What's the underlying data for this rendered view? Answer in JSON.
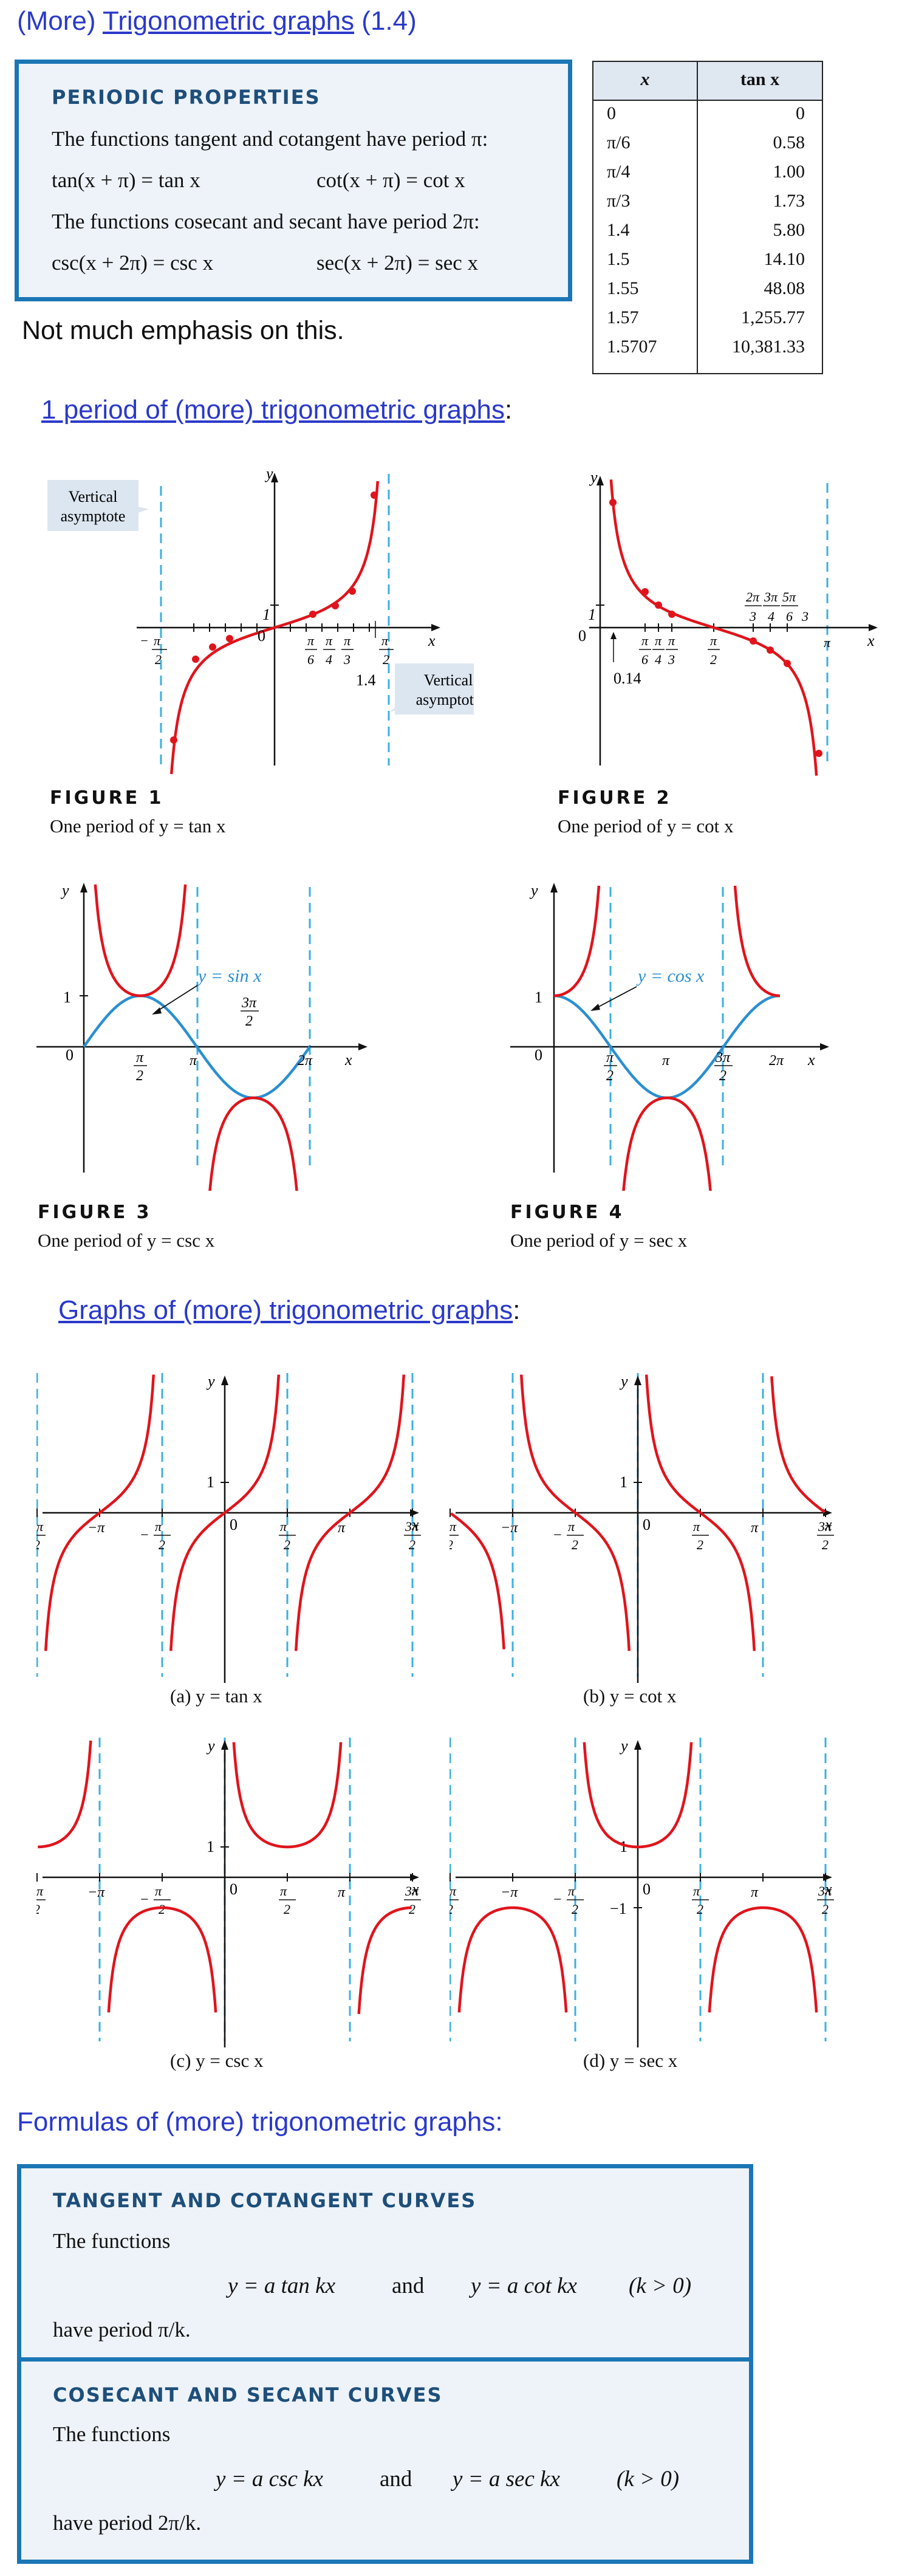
{
  "page": {
    "title_prefix": "(More) ",
    "title_link": "Trigonometric graphs",
    "title_suffix": " (1.4)"
  },
  "periodic": {
    "title": "PERIODIC PROPERTIES",
    "line1": "The functions tangent and cotangent have period π:",
    "f1a": "tan(x + π) = tan x",
    "f1b": "cot(x + π) = cot x",
    "line2": "The functions cosecant and secant have period 2π:",
    "f2a": "csc(x + 2π) = csc x",
    "f2b": "sec(x + 2π) = sec x"
  },
  "note": "Not much emphasis on this.",
  "table": {
    "headers": [
      "x",
      "tan x"
    ],
    "rows": [
      [
        "0",
        "0"
      ],
      [
        "π/6",
        "0.58"
      ],
      [
        "π/4",
        "1.00"
      ],
      [
        "π/3",
        "1.73"
      ],
      [
        "1.4",
        "5.80"
      ],
      [
        "1.5",
        "14.10"
      ],
      [
        "1.55",
        "48.08"
      ],
      [
        "1.57",
        "1,255.77"
      ],
      [
        "1.5707",
        "10,381.33"
      ]
    ]
  },
  "section1": {
    "link": "1 period of (more) trigonometric graphs",
    "suffix": ":"
  },
  "fig1": {
    "label": "FIGURE 1",
    "caption": "One period of y = tan x",
    "callout_top": [
      "Vertical",
      "asymptote"
    ],
    "callout_bottom": [
      "Vertical",
      "asymptote"
    ],
    "annot": "1.4",
    "ticks": [
      "π",
      "6",
      "π",
      "4",
      "π",
      "3",
      "π",
      "2"
    ],
    "neg_tick": [
      "π",
      "2"
    ]
  },
  "fig2": {
    "label": "FIGURE 2",
    "caption": "One period of y = cot x",
    "annot": "0.14"
  },
  "fig3": {
    "label": "FIGURE 3",
    "caption": "One period of y = csc x",
    "curve_label": "y = sin x"
  },
  "fig4": {
    "label": "FIGURE 4",
    "caption": "One period of y = sec x",
    "curve_label": "y = cos x"
  },
  "section2": {
    "link": "Graphs of (more) trigonometric graphs",
    "suffix": ":"
  },
  "graphs": {
    "a": "(a)  y = tan x",
    "b": "(b)  y = cot x",
    "c": "(c)  y = csc x",
    "d": "(d)  y = sec x"
  },
  "section3": {
    "text": "Formulas of (more) trigonometric graphs:"
  },
  "tancot": {
    "title": "TANGENT AND COTANGENT CURVES",
    "intro": "The functions",
    "f1": "y = a tan kx",
    "and": "and",
    "f2": "y = a cot kx",
    "cond": "(k > 0)",
    "period": "have period π/k."
  },
  "cscsec": {
    "title": "COSECANT AND SECANT CURVES",
    "intro": "The functions",
    "f1": "y = a csc kx",
    "and": "and",
    "f2": "y = a sec kx",
    "cond": "(k > 0)",
    "period": "have period 2π/k."
  },
  "axis": {
    "x": "x",
    "y": "y",
    "one": "1",
    "zero": "0",
    "neg_one": "−1"
  },
  "colors": {
    "curve": "#e0141c",
    "asymptote": "#3bb0e0",
    "helper": "#2a8fd0",
    "box_border": "#1a76b5",
    "link": "#2a39c9"
  }
}
